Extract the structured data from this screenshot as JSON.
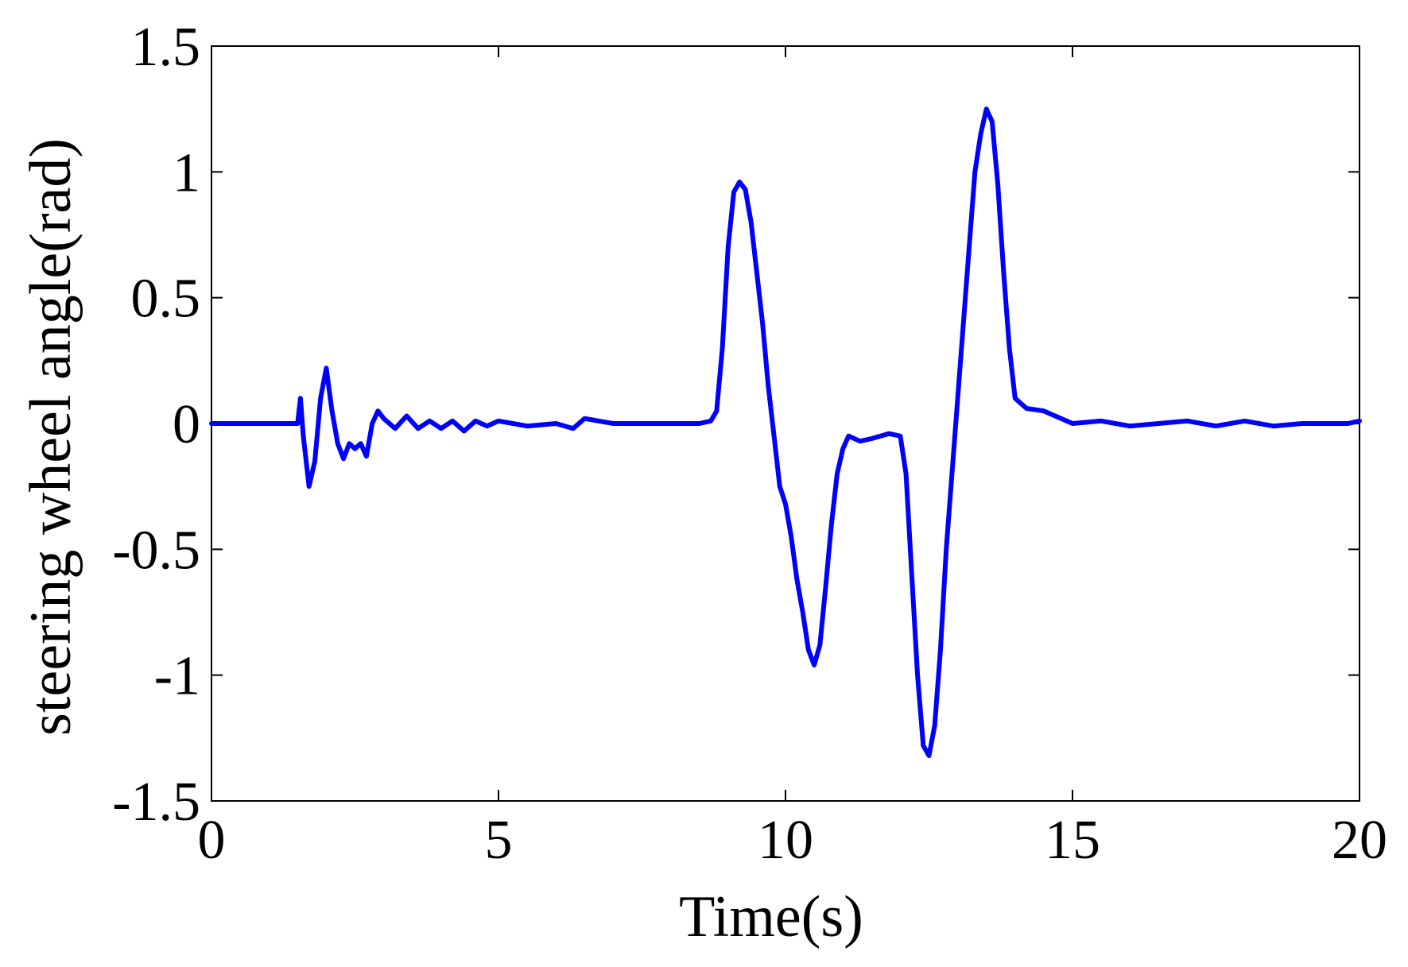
{
  "chart_data": {
    "type": "line",
    "title": "",
    "xlabel": "Time(s)",
    "ylabel": "steering wheel angle(rad)",
    "xlim": [
      0,
      20
    ],
    "ylim": [
      -1.5,
      1.5
    ],
    "xticks": [
      "0",
      "5",
      "10",
      "15",
      "20"
    ],
    "yticks": [
      "1.5",
      "1",
      "0.5",
      "0",
      "-0.5",
      "-1",
      "-1.5"
    ],
    "grid": false,
    "legend": "none",
    "colors": {
      "series": "#0000ff",
      "axes": "#000000"
    },
    "series": [
      {
        "x": [
          0,
          1.5,
          1.55,
          1.6,
          1.7,
          1.8,
          1.9,
          2.0,
          2.1,
          2.2,
          2.3,
          2.4,
          2.5,
          2.6,
          2.7,
          2.8,
          2.9,
          3.0,
          3.2,
          3.4,
          3.6,
          3.8,
          4.0,
          4.2,
          4.4,
          4.6,
          4.8,
          5.0,
          5.5,
          6.0,
          6.3,
          6.5,
          7.0,
          7.5,
          8.0,
          8.5,
          8.7,
          8.8,
          8.9,
          9.0,
          9.1,
          9.2,
          9.3,
          9.4,
          9.5,
          9.6,
          9.7,
          9.8,
          9.9,
          10.0,
          10.1,
          10.2,
          10.3,
          10.4,
          10.5,
          10.6,
          10.7,
          10.8,
          10.9,
          11.0,
          11.1,
          11.2,
          11.3,
          11.5,
          11.8,
          12.0,
          12.1,
          12.2,
          12.3,
          12.4,
          12.5,
          12.6,
          12.7,
          12.8,
          12.9,
          13.0,
          13.1,
          13.2,
          13.3,
          13.4,
          13.5,
          13.6,
          13.7,
          13.8,
          13.9,
          14.0,
          14.2,
          14.5,
          15.0,
          15.5,
          16.0,
          16.5,
          17.0,
          17.5,
          18.0,
          18.5,
          19.0,
          19.5,
          19.8,
          20.0
        ],
        "y": [
          0,
          0,
          0.1,
          -0.05,
          -0.25,
          -0.15,
          0.1,
          0.22,
          0.05,
          -0.08,
          -0.14,
          -0.08,
          -0.1,
          -0.08,
          -0.13,
          0,
          0.05,
          0.02,
          -0.02,
          0.03,
          -0.02,
          0.01,
          -0.02,
          0.01,
          -0.03,
          0.01,
          -0.01,
          0.01,
          -0.01,
          0.0,
          -0.02,
          0.02,
          0.0,
          0.0,
          0.0,
          0.0,
          0.01,
          0.05,
          0.3,
          0.7,
          0.92,
          0.96,
          0.93,
          0.8,
          0.6,
          0.4,
          0.15,
          -0.05,
          -0.25,
          -0.32,
          -0.45,
          -0.62,
          -0.75,
          -0.9,
          -0.96,
          -0.88,
          -0.65,
          -0.4,
          -0.2,
          -0.1,
          -0.05,
          -0.06,
          -0.07,
          -0.06,
          -0.04,
          -0.05,
          -0.2,
          -0.6,
          -1.0,
          -1.28,
          -1.32,
          -1.2,
          -0.9,
          -0.5,
          -0.2,
          0.1,
          0.4,
          0.7,
          1.0,
          1.15,
          1.25,
          1.2,
          0.95,
          0.6,
          0.3,
          0.1,
          0.06,
          0.05,
          0.0,
          0.01,
          -0.01,
          0.0,
          0.01,
          -0.01,
          0.01,
          -0.01,
          0.0,
          0.0,
          0.0,
          0.01
        ]
      }
    ]
  }
}
